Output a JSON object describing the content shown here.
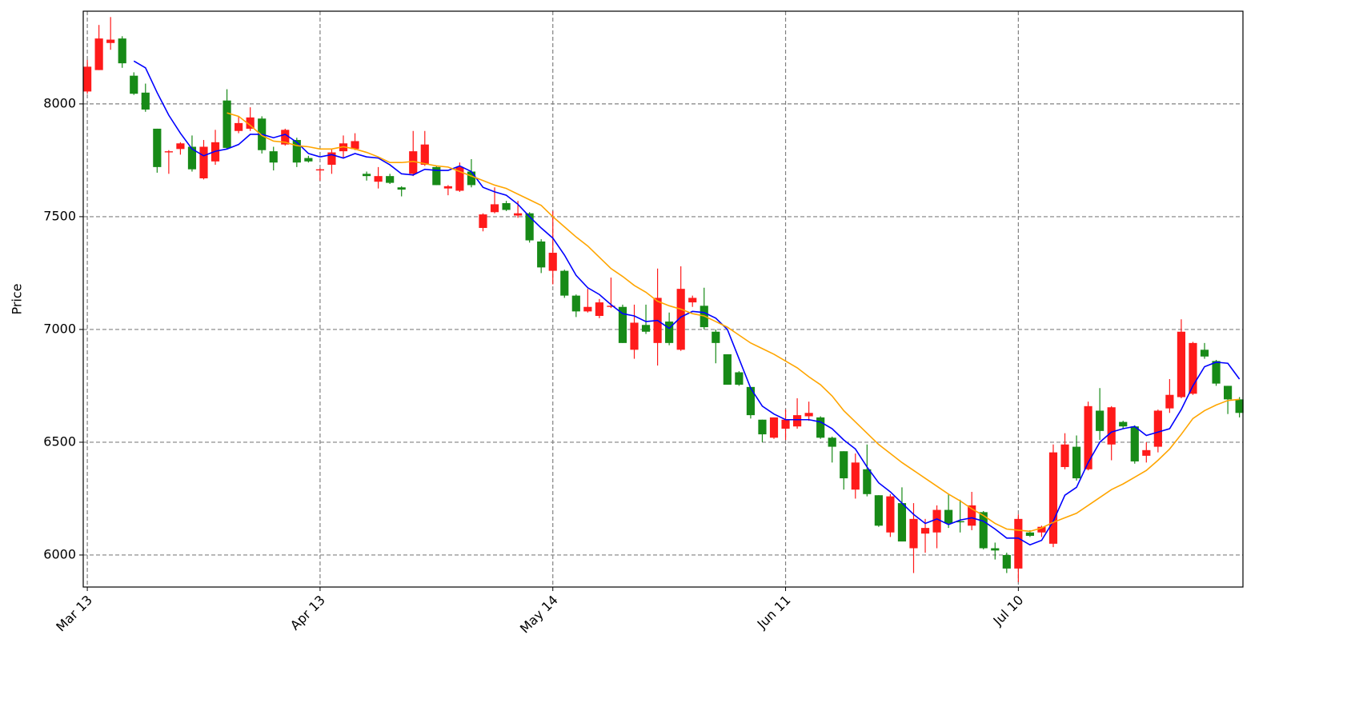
{
  "chart_data": {
    "type": "candlestick",
    "ylabel": "Price",
    "categories": [
      "Mar 13",
      null,
      null,
      null,
      null,
      null,
      null,
      null,
      null,
      null,
      null,
      null,
      null,
      null,
      null,
      null,
      null,
      null,
      null,
      null,
      "Apr 13",
      null,
      null,
      null,
      null,
      null,
      null,
      null,
      null,
      null,
      null,
      null,
      null,
      null,
      null,
      null,
      null,
      null,
      null,
      null,
      "May 14",
      null,
      null,
      null,
      null,
      null,
      null,
      null,
      null,
      null,
      null,
      null,
      null,
      null,
      null,
      null,
      null,
      null,
      null,
      null,
      "Jun 11",
      null,
      null,
      null,
      null,
      null,
      null,
      null,
      null,
      null,
      null,
      null,
      null,
      null,
      null,
      null,
      null,
      null,
      null,
      null,
      "Jul 10",
      null,
      null,
      null,
      null,
      null,
      null,
      null,
      null,
      null,
      null,
      null,
      null,
      null,
      null,
      null,
      null,
      null,
      null,
      null
    ],
    "open": [
      8055,
      8150,
      8270,
      8290,
      8125,
      8050,
      7890,
      7785,
      7800,
      7810,
      7670,
      7745,
      8015,
      7880,
      7890,
      7935,
      7790,
      7820,
      7840,
      7760,
      7705,
      7730,
      7790,
      7800,
      7690,
      7655,
      7680,
      7630,
      7690,
      7730,
      7720,
      7625,
      7615,
      7700,
      7450,
      7520,
      7560,
      7505,
      7515,
      7390,
      7260,
      7260,
      7150,
      7080,
      7060,
      7100,
      7100,
      6910,
      7020,
      6940,
      7035,
      6910,
      7120,
      7105,
      6990,
      6890,
      6810,
      6745,
      6600,
      6520,
      6560,
      6570,
      6615,
      6610,
      6520,
      6460,
      6290,
      6380,
      6265,
      6100,
      6230,
      6030,
      6095,
      6100,
      6200,
      6150,
      6130,
      6190,
      6030,
      6000,
      5940,
      6100,
      6100,
      6050,
      6390,
      6480,
      6380,
      6640,
      6490,
      6590,
      6570,
      6440,
      6480,
      6650,
      6700,
      6715,
      6910,
      6860,
      6750,
      6690
    ],
    "high": [
      8195,
      8350,
      8385,
      8300,
      8140,
      8090,
      7890,
      7795,
      7830,
      7860,
      7840,
      7885,
      8065,
      7945,
      7985,
      7945,
      7810,
      7890,
      7850,
      7770,
      7715,
      7800,
      7860,
      7870,
      7700,
      7720,
      7690,
      7635,
      7880,
      7880,
      7725,
      7640,
      7740,
      7755,
      7515,
      7630,
      7570,
      7570,
      7520,
      7400,
      7525,
      7265,
      7155,
      7180,
      7135,
      7230,
      7110,
      7110,
      7110,
      7270,
      7075,
      7280,
      7150,
      7185,
      7000,
      6890,
      6815,
      6745,
      6600,
      6610,
      6645,
      6695,
      6680,
      6615,
      6525,
      6460,
      6450,
      6490,
      6265,
      6270,
      6300,
      6230,
      6160,
      6220,
      6270,
      6245,
      6280,
      6195,
      6055,
      6010,
      6180,
      6110,
      6130,
      6490,
      6540,
      6530,
      6680,
      6740,
      6660,
      6595,
      6575,
      6500,
      6645,
      6780,
      7045,
      6945,
      6940,
      6865,
      6750,
      6700
    ],
    "low": [
      8045,
      8150,
      8240,
      8160,
      8040,
      7965,
      7695,
      7690,
      7775,
      7700,
      7665,
      7730,
      7800,
      7870,
      7880,
      7780,
      7705,
      7815,
      7720,
      7740,
      7660,
      7690,
      7760,
      7795,
      7660,
      7625,
      7645,
      7590,
      7680,
      7725,
      7640,
      7595,
      7610,
      7630,
      7435,
      7515,
      7525,
      7495,
      7385,
      7250,
      7200,
      7140,
      7055,
      7075,
      7050,
      7095,
      6940,
      6870,
      6980,
      6840,
      6930,
      6905,
      7100,
      7000,
      6850,
      6755,
      6750,
      6605,
      6500,
      6515,
      6510,
      6560,
      6595,
      6515,
      6410,
      6290,
      6250,
      6260,
      6125,
      6080,
      6060,
      5920,
      6010,
      6030,
      6120,
      6100,
      6110,
      6025,
      5980,
      5920,
      5880,
      6080,
      6080,
      6035,
      6380,
      6330,
      6375,
      6510,
      6420,
      6560,
      6405,
      6410,
      6455,
      6630,
      6695,
      6710,
      6870,
      6750,
      6625,
      6610
    ],
    "close": [
      8165,
      8290,
      8285,
      8180,
      8045,
      7975,
      7720,
      7790,
      7825,
      7710,
      7810,
      7830,
      7805,
      7915,
      7940,
      7795,
      7740,
      7885,
      7740,
      7745,
      7710,
      7785,
      7825,
      7835,
      7680,
      7680,
      7650,
      7620,
      7790,
      7820,
      7640,
      7635,
      7720,
      7640,
      7510,
      7555,
      7530,
      7515,
      7395,
      7275,
      7340,
      7150,
      7080,
      7100,
      7120,
      7105,
      6940,
      7030,
      6990,
      7140,
      6940,
      7180,
      7140,
      7010,
      6940,
      6755,
      6755,
      6620,
      6535,
      6610,
      6600,
      6620,
      6630,
      6520,
      6480,
      6340,
      6410,
      6270,
      6130,
      6260,
      6060,
      6160,
      6120,
      6200,
      6140,
      6145,
      6220,
      6030,
      6020,
      5940,
      6160,
      6085,
      6125,
      6455,
      6490,
      6340,
      6660,
      6550,
      6655,
      6570,
      6415,
      6465,
      6640,
      6710,
      6990,
      6940,
      6880,
      6760,
      6690,
      6630
    ],
    "up_color": "#ff1a1a",
    "down_color": "#178a17",
    "lines": [
      {
        "color": "#0000ff",
        "values": [
          null,
          null,
          null,
          null,
          8190,
          8160,
          8050,
          7950,
          7870,
          7800,
          7770,
          7790,
          7800,
          7820,
          7865,
          7865,
          7850,
          7865,
          7830,
          7780,
          7765,
          7775,
          7760,
          7780,
          7765,
          7760,
          7730,
          7690,
          7685,
          7710,
          7705,
          7705,
          7725,
          7700,
          7630,
          7610,
          7595,
          7555,
          7500,
          7450,
          7405,
          7330,
          7240,
          7185,
          7155,
          7110,
          7070,
          7060,
          7035,
          7040,
          7005,
          7055,
          7080,
          7075,
          7050,
          7000,
          6870,
          6740,
          6660,
          6625,
          6600,
          6600,
          6600,
          6590,
          6560,
          6510,
          6470,
          6390,
          6320,
          6280,
          6230,
          6180,
          6140,
          6160,
          6135,
          6155,
          6165,
          6150,
          6115,
          6075,
          6075,
          6045,
          6065,
          6150,
          6265,
          6300,
          6410,
          6500,
          6545,
          6560,
          6570,
          6530,
          6545,
          6560,
          6645,
          6750,
          6835,
          6855,
          6850,
          6780
        ]
      },
      {
        "color": "#ffa500",
        "values": [
          null,
          null,
          null,
          null,
          null,
          null,
          null,
          null,
          null,
          null,
          null,
          null,
          7960,
          7945,
          7905,
          7860,
          7835,
          7830,
          7815,
          7810,
          7800,
          7800,
          7810,
          7800,
          7785,
          7765,
          7740,
          7740,
          7745,
          7735,
          7725,
          7720,
          7700,
          7680,
          7660,
          7640,
          7625,
          7600,
          7575,
          7550,
          7500,
          7455,
          7410,
          7370,
          7320,
          7270,
          7235,
          7195,
          7165,
          7125,
          7105,
          7090,
          7070,
          7060,
          7035,
          7010,
          6975,
          6940,
          6915,
          6890,
          6860,
          6830,
          6790,
          6755,
          6705,
          6640,
          6590,
          6540,
          6490,
          6450,
          6410,
          6375,
          6340,
          6305,
          6270,
          6240,
          6205,
          6175,
          6140,
          6115,
          6110,
          6105,
          6120,
          6145,
          6165,
          6185,
          6220,
          6255,
          6290,
          6315,
          6345,
          6375,
          6420,
          6470,
          6535,
          6605,
          6640,
          6665,
          6685,
          6690
        ]
      }
    ],
    "xlim": [
      -0.35,
      99.3
    ],
    "ylim": [
      5858,
      8411
    ],
    "yticks": [
      6000,
      6500,
      7000,
      7500,
      8000
    ],
    "grid": true
  }
}
